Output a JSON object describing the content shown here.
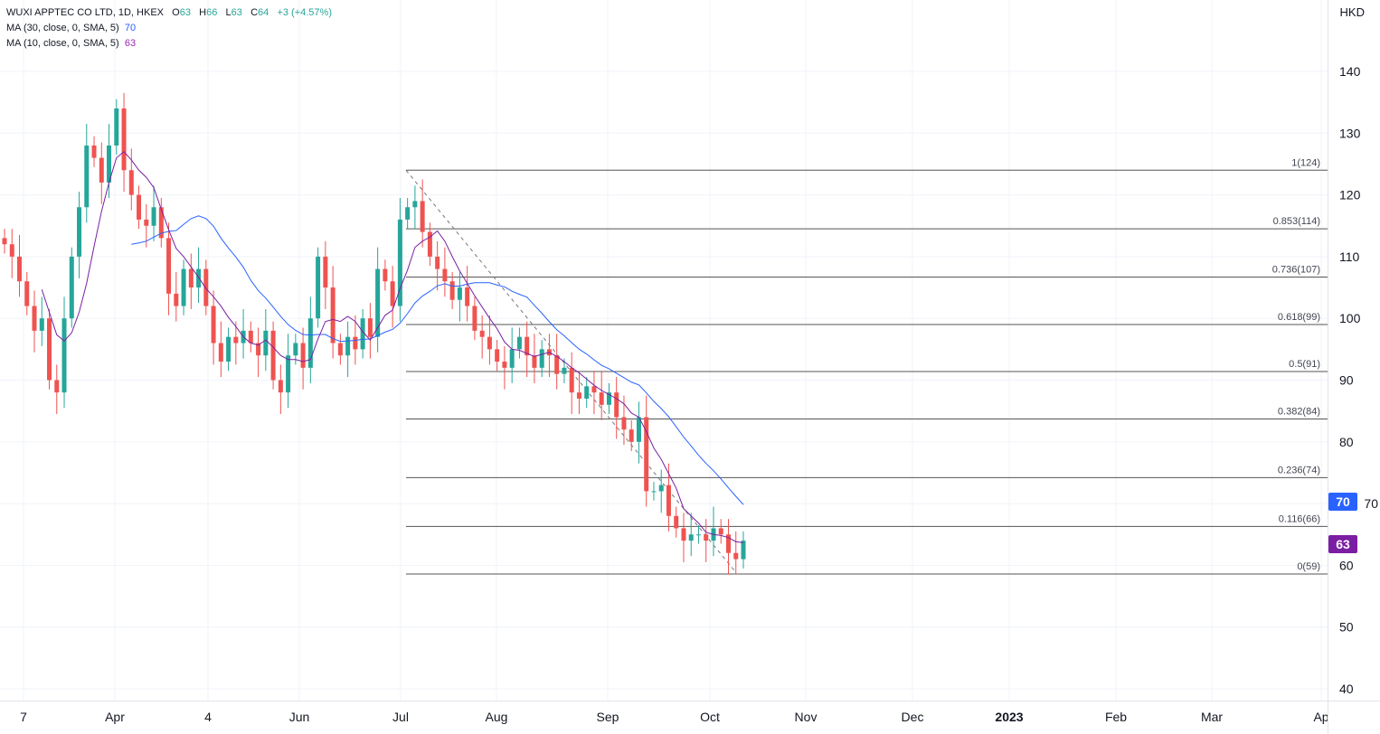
{
  "legend": {
    "symbol": "WUXI APPTEC CO LTD, 1D, HKEX",
    "open_label": "O",
    "open": "63",
    "high_label": "H",
    "high": "66",
    "low_label": "L",
    "low": "63",
    "close_label": "C",
    "close": "64",
    "change": "+3 (+4.57%)",
    "ma30_label": "MA (30, close, 0, SMA, 5)",
    "ma30_value": "70",
    "ma10_label": "MA (10, close, 0, SMA, 5)",
    "ma10_value": "63"
  },
  "currency": "HKD",
  "badges": {
    "ma30": "70",
    "ma10": "63"
  },
  "colors": {
    "up": "#26a69a",
    "down": "#ef5350",
    "ma30": "#2962ff",
    "ma10": "#7b1fa2",
    "fib": "#131722"
  },
  "chart_data": {
    "type": "candlestick",
    "ylim": [
      40,
      140
    ],
    "y_ticks": [
      "140",
      "130",
      "120",
      "110",
      "100",
      "90",
      "80",
      "70",
      "60",
      "50",
      "40"
    ],
    "x_ticks": [
      "7",
      "Apr",
      "4",
      "Jun",
      "Jul",
      "Aug",
      "Sep",
      "Oct",
      "Nov",
      "Dec",
      "2023",
      "Feb",
      "Mar",
      "Ap"
    ],
    "close": [
      112,
      110,
      106,
      102,
      98,
      100,
      90,
      88,
      100,
      110,
      118,
      128,
      126,
      122,
      128,
      134,
      124,
      120,
      116,
      115,
      118,
      113,
      104,
      102,
      108,
      105,
      108,
      102,
      96,
      93,
      97,
      96,
      98,
      96,
      94,
      98,
      90,
      88,
      94,
      96,
      92,
      100,
      110,
      105,
      96,
      94,
      97,
      95,
      100,
      97,
      108,
      106,
      102,
      116,
      118,
      119,
      114,
      110,
      108,
      106,
      103,
      105,
      102,
      98,
      97,
      95,
      93,
      92,
      95,
      97,
      94,
      92,
      95,
      94,
      91,
      92,
      88,
      87,
      89,
      88,
      86,
      88,
      84,
      82,
      80,
      84,
      72,
      72,
      73,
      68,
      66,
      64,
      65,
      65,
      64,
      66,
      65,
      62,
      61,
      64
    ],
    "fibonacci": {
      "high": 124,
      "low": 59,
      "levels": [
        {
          "label": "1(124)",
          "price": 124
        },
        {
          "label": "0.853(114)",
          "price": 114.5
        },
        {
          "label": "0.736(107)",
          "price": 106.7
        },
        {
          "label": "0.618(99)",
          "price": 99
        },
        {
          "label": "0.5(91)",
          "price": 91.4
        },
        {
          "label": "0.382(84)",
          "price": 83.7
        },
        {
          "label": "0.236(74)",
          "price": 74.2
        },
        {
          "label": "0.116(66)",
          "price": 66.3
        },
        {
          "label": "0(59)",
          "price": 58.6
        }
      ]
    },
    "series": [
      {
        "name": "MA (30, close, 0, SMA, 5)",
        "window": 30
      },
      {
        "name": "MA (10, close, 0, SMA, 5)",
        "window": 10
      }
    ]
  }
}
